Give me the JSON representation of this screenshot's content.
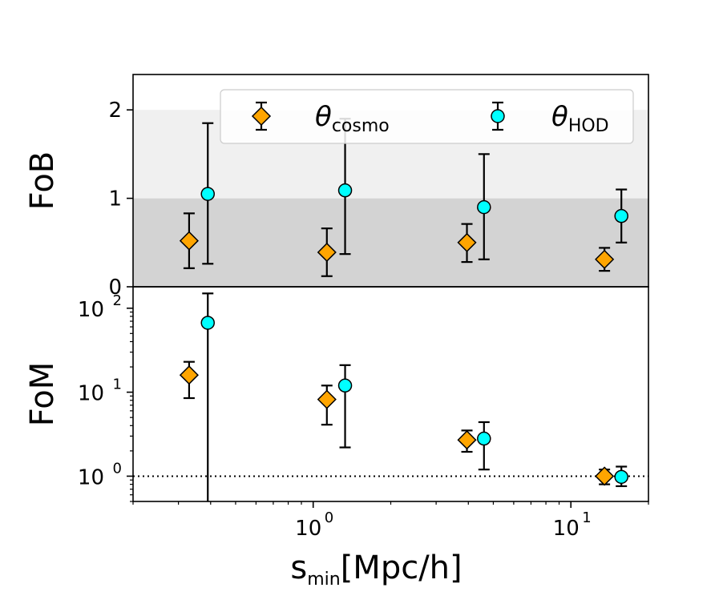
{
  "chart_data": [
    {
      "panel": "top",
      "type": "scatter",
      "ylabel": "FoB",
      "xscale": "log",
      "xlim": [
        0.2,
        20
      ],
      "ylim": [
        0,
        2.4
      ],
      "yticks": [
        0,
        1,
        2
      ],
      "ytick_labels": [
        "0",
        "1",
        "2"
      ],
      "shaded_bands": [
        {
          "from": 0,
          "to": 1,
          "color": "#d3d3d3"
        },
        {
          "from": 1,
          "to": 2,
          "color": "#f0f0f0"
        }
      ],
      "legend": {
        "placement": "top-right",
        "entries": [
          {
            "symbol": "θ",
            "sub": "cosmo",
            "marker": "diamond",
            "color": "#ffa500"
          },
          {
            "symbol": "θ",
            "sub": "HOD",
            "marker": "circle",
            "color": "#00ffff"
          }
        ]
      },
      "series": [
        {
          "name": "θcosmo",
          "marker": "diamond",
          "color": "#ffa500",
          "x": [
            0.33,
            1.13,
            3.95,
            13.5
          ],
          "y": [
            0.52,
            0.39,
            0.5,
            0.31
          ],
          "y_err_low": [
            0.21,
            0.12,
            0.28,
            0.18
          ],
          "y_err_high": [
            0.83,
            0.66,
            0.71,
            0.44
          ]
        },
        {
          "name": "θHOD",
          "marker": "circle",
          "color": "#00ffff",
          "x": [
            0.39,
            1.33,
            4.6,
            15.7
          ],
          "y": [
            1.05,
            1.09,
            0.9,
            0.8
          ],
          "y_err_low": [
            0.26,
            0.37,
            0.31,
            0.5
          ],
          "y_err_high": [
            1.85,
            1.9,
            1.5,
            1.1
          ]
        }
      ]
    },
    {
      "panel": "bottom",
      "type": "scatter",
      "ylabel": "FoM",
      "xlabel_main": "s",
      "xlabel_sub": "min",
      "xlabel_unit": "[Mpc/h]",
      "xscale": "log",
      "yscale": "log",
      "xlim": [
        0.2,
        20
      ],
      "ylim": [
        0.5,
        180
      ],
      "xticks": [
        {
          "value": 1,
          "base": "10",
          "exp": "0"
        },
        {
          "value": 10,
          "base": "10",
          "exp": "1"
        }
      ],
      "yticks": [
        {
          "value": 1,
          "base": "10",
          "exp": "0"
        },
        {
          "value": 10,
          "base": "10",
          "exp": "1"
        },
        {
          "value": 100,
          "base": "10",
          "exp": "2"
        }
      ],
      "reference_line": {
        "y": 1,
        "style": "dotted"
      },
      "series": [
        {
          "name": "θcosmo",
          "marker": "diamond",
          "color": "#ffa500",
          "x": [
            0.33,
            1.13,
            3.95,
            13.5
          ],
          "y": [
            16,
            8.2,
            2.7,
            1.0
          ],
          "y_err_low": [
            8.5,
            4.1,
            1.95,
            0.8
          ],
          "y_err_high": [
            23,
            12,
            3.5,
            1.2
          ]
        },
        {
          "name": "θHOD",
          "marker": "circle",
          "color": "#00ffff",
          "x": [
            0.39,
            1.33,
            4.6,
            15.7
          ],
          "y": [
            67,
            12,
            2.8,
            0.98
          ],
          "y_err_low": [
            0.5,
            2.2,
            1.2,
            0.76
          ],
          "y_err_high": [
            150,
            21,
            4.4,
            1.3
          ]
        }
      ]
    }
  ]
}
